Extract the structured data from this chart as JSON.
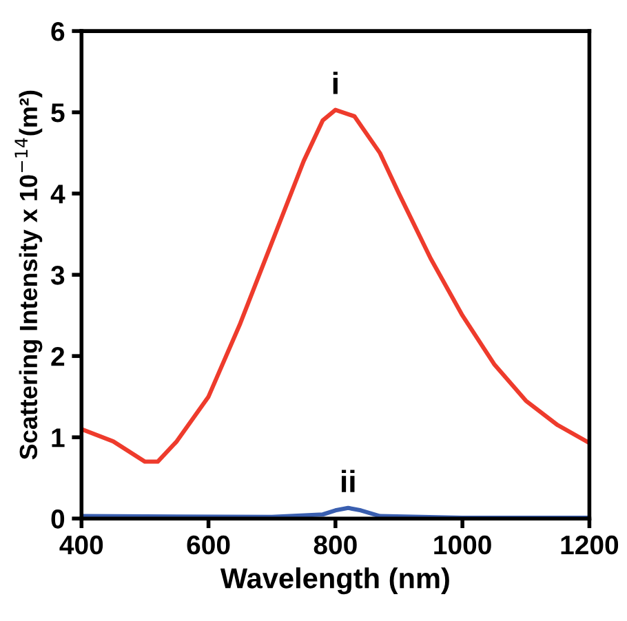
{
  "chart_data": {
    "type": "line",
    "xlabel": "Wavelength (nm)",
    "ylabel": "Scattering Intensity x 10$^{−14}$(m²)",
    "xlim": [
      400,
      1200
    ],
    "xticks": [
      400,
      600,
      800,
      1000,
      1200
    ],
    "ylim": [
      0,
      6
    ],
    "yticks": [
      0,
      1,
      2,
      3,
      4,
      5,
      6
    ],
    "grid": false,
    "legend": false,
    "marker": "none",
    "line_style": "solid",
    "series": [
      {
        "color": "#ee3b2c",
        "x": [
          400,
          450,
          500,
          520,
          550,
          600,
          650,
          700,
          750,
          780,
          800,
          830,
          870,
          900,
          950,
          1000,
          1050,
          1100,
          1150,
          1200
        ],
        "values": [
          1.1,
          0.95,
          0.7,
          0.7,
          0.95,
          1.5,
          2.4,
          3.4,
          4.4,
          4.9,
          5.03,
          4.95,
          4.5,
          4.0,
          3.2,
          2.5,
          1.9,
          1.45,
          1.15,
          0.93
        ]
      },
      {
        "color": "#3a5fb0",
        "x": [
          400,
          700,
          780,
          800,
          820,
          840,
          870,
          1000,
          1200
        ],
        "values": [
          0.03,
          0.02,
          0.05,
          0.1,
          0.13,
          0.1,
          0.03,
          0.01,
          0.01
        ]
      }
    ],
    "annotations": [
      "i",
      "ii"
    ]
  }
}
